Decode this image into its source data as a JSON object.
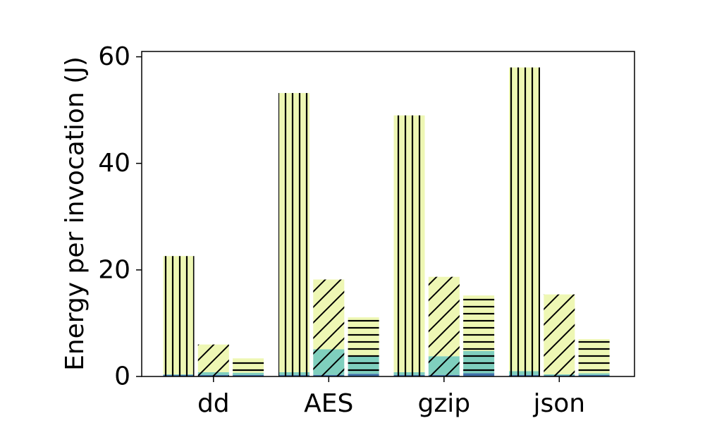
{
  "chart_data": {
    "type": "bar",
    "subtype": "grouped-stacked",
    "title": "",
    "xlabel": "",
    "ylabel": "Energy per invocation (J)",
    "ylim": [
      0,
      61
    ],
    "yticks": [
      "0",
      "20",
      "40",
      "60"
    ],
    "categories": [
      "dd",
      "AES",
      "gzip",
      "json"
    ],
    "grid": false,
    "bars_per_group": 3,
    "hatch_by_position": [
      "vertical",
      "diagonal",
      "horizontal"
    ],
    "stack_colors": [
      "#3f6fa8",
      "#7fcfbe",
      "#eef7b4"
    ],
    "stacks": [
      [
        {
          "segments": [
            0.3,
            0.1,
            22.2
          ]
        },
        {
          "segments": [
            0.3,
            0.5,
            5.2
          ]
        },
        {
          "segments": [
            0.3,
            0.4,
            2.7
          ]
        }
      ],
      [
        {
          "segments": [
            0.3,
            0.5,
            52.4
          ]
        },
        {
          "segments": [
            0.3,
            4.8,
            13.1
          ]
        },
        {
          "segments": [
            0.5,
            3.4,
            7.2
          ]
        }
      ],
      [
        {
          "segments": [
            0.3,
            0.5,
            48.2
          ]
        },
        {
          "segments": [
            0.3,
            3.5,
            14.9
          ]
        },
        {
          "segments": [
            0.6,
            4.2,
            10.4
          ]
        }
      ],
      [
        {
          "segments": [
            0.3,
            0.7,
            57.0
          ]
        },
        {
          "segments": [
            0.2,
            0.2,
            15.0
          ]
        },
        {
          "segments": [
            0.3,
            0.3,
            6.4
          ]
        }
      ]
    ]
  }
}
